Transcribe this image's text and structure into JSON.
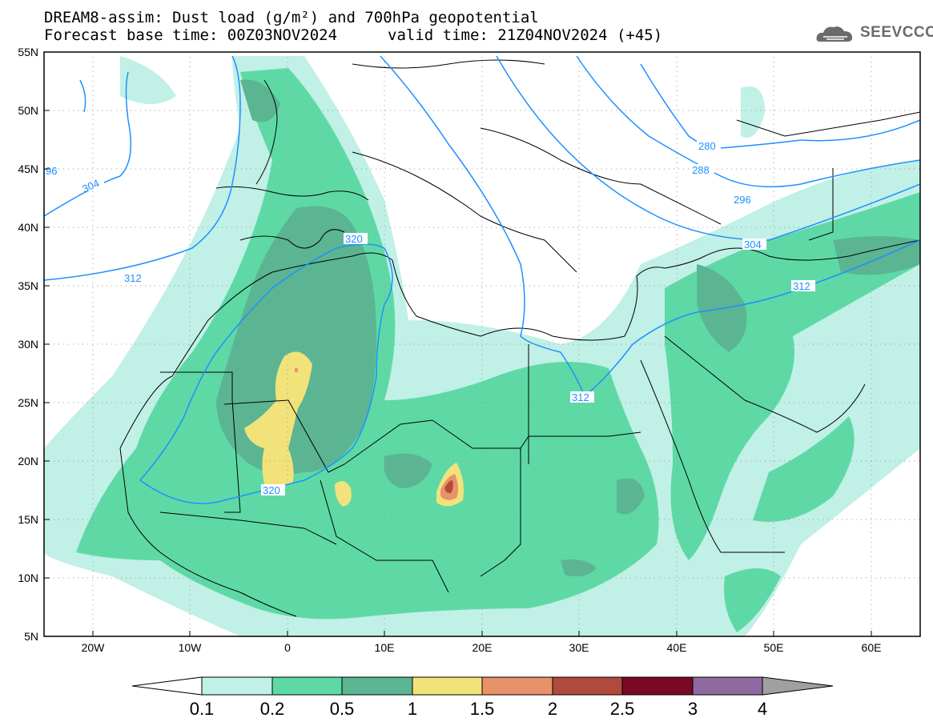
{
  "header": {
    "title_line1": "DREAM8-assim: Dust load (g/m²) and 700hPa geopotential",
    "title_line2_left": "Forecast base time: 00Z03NOV2024",
    "title_line2_right": "valid time: 21Z04NOV2024 (+45)",
    "logo_text": "SEEVCCC",
    "logo_icon": "cloud-logo-icon"
  },
  "map": {
    "lon_range": [
      -25,
      65
    ],
    "lat_range": [
      5,
      55
    ],
    "lat_labels": [
      "55N",
      "50N",
      "45N",
      "40N",
      "35N",
      "30N",
      "25N",
      "20N",
      "15N",
      "10N",
      "5N"
    ],
    "lon_labels": [
      "20W",
      "10W",
      "0",
      "10E",
      "20E",
      "30E",
      "40E",
      "50E",
      "60E"
    ],
    "contour_color": "#1e90ff",
    "contour_labels": [
      "304",
      "96",
      "312",
      "320",
      "320",
      "280",
      "288",
      "296",
      "304",
      "312",
      "312"
    ]
  },
  "legend": {
    "labels": [
      "0.1",
      "0.2",
      "0.5",
      "1",
      "1.5",
      "2",
      "2.5",
      "3",
      "4"
    ],
    "colors": [
      "#ffffff",
      "#c0f0e6",
      "#5ed9a6",
      "#5bb592",
      "#f2e27a",
      "#e8926a",
      "#b04a3c",
      "#7a0a24",
      "#8e6aa0",
      "#a0a0a0"
    ]
  }
}
